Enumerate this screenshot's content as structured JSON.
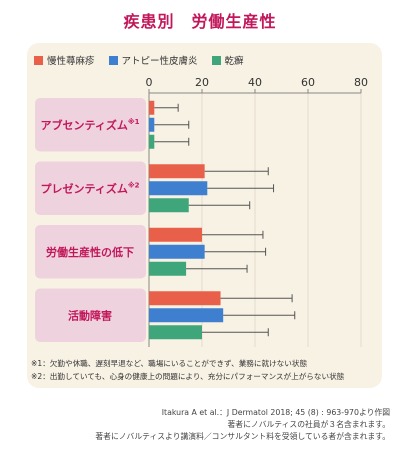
{
  "title": "疾患別　労働生産性",
  "colors": {
    "series": [
      "#e8604a",
      "#3f7fd0",
      "#3ea67a"
    ],
    "title": "#c2185b",
    "panel": "#f8f2e5",
    "category_box": "#eed2dd",
    "category_text": "#c2185b"
  },
  "chart_data": {
    "type": "bar",
    "orientation": "horizontal",
    "categories": [
      "アブセンティズム",
      "プレゼンティズム",
      "労働生産性の低下",
      "活動障害"
    ],
    "category_notes": [
      "※1",
      "※2",
      "",
      ""
    ],
    "series": [
      {
        "name": "慢性蕁麻疹",
        "values": [
          2,
          21,
          20,
          27
        ],
        "errors": [
          9,
          24,
          23,
          27
        ]
      },
      {
        "name": "アトピー性皮膚炎",
        "values": [
          2,
          22,
          21,
          28
        ],
        "errors": [
          13,
          25,
          23,
          27
        ]
      },
      {
        "name": "乾癬",
        "values": [
          2,
          15,
          14,
          20
        ],
        "errors": [
          13,
          23,
          23,
          25
        ]
      }
    ],
    "xlim": [
      0,
      80
    ],
    "xticks": [
      0,
      20,
      40,
      60,
      80
    ],
    "error_bars": true,
    "legend_position": "top-left"
  },
  "notes": [
    "※1：欠勤や休職、遅刻早退など、職場にいることができず、業務に就けない状態",
    "※2：出勤していても、心身の健康上の問題により、充分にパフォーマンスが上がらない状態"
  ],
  "source": [
    "Itakura A et al.：J Dermatol 2018; 45 (8) : 963-970より作図",
    "著者にノバルティスの社員が３名含まれます。",
    "著者にノバルティスより講演料／コンサルタント料を受領している者が含まれます。"
  ]
}
